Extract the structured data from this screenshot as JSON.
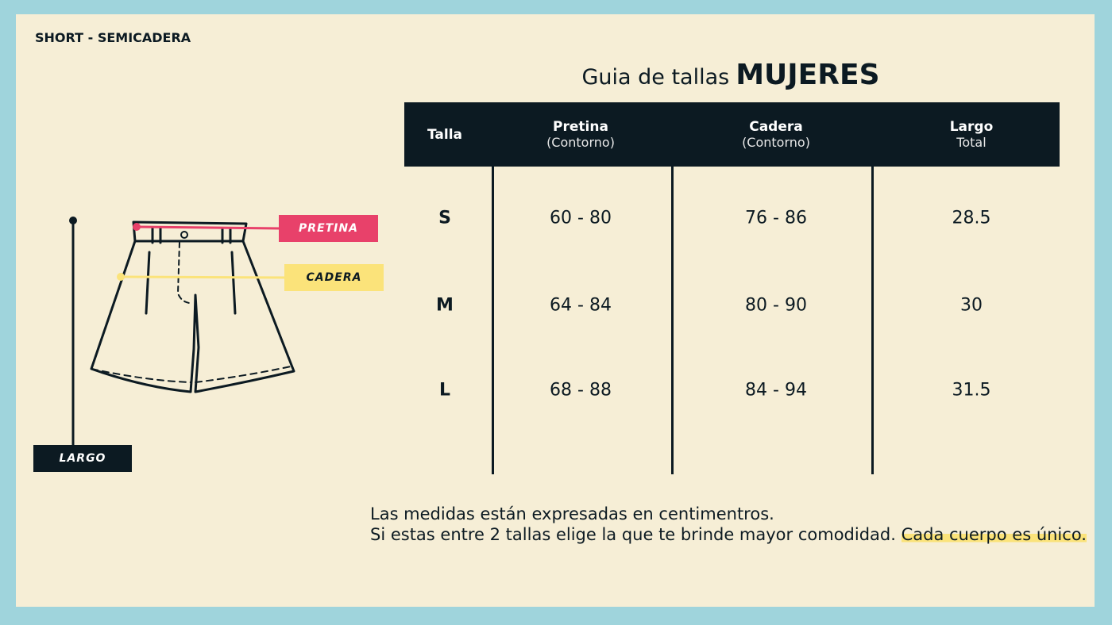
{
  "header": {
    "label": "SHORT - SEMICADERA"
  },
  "title": {
    "prefix": "Guia de tallas",
    "main": "MUJERES"
  },
  "table": {
    "headers": [
      {
        "title": "Talla"
      },
      {
        "title": "Pretina",
        "subtitle": "(Contorno)"
      },
      {
        "title": "Cadera",
        "subtitle": "(Contorno)"
      },
      {
        "title": "Largo",
        "subtitle": "Total"
      }
    ],
    "rows": [
      [
        "S",
        "60 - 80",
        "76 - 86",
        "28.5"
      ],
      [
        "M",
        "64 - 84",
        "80 - 90",
        "30"
      ],
      [
        "L",
        "68 - 88",
        "84 - 94",
        "31.5"
      ]
    ]
  },
  "diagram": {
    "labels": {
      "pretina": "PRETINA",
      "cadera": "CADERA",
      "largo": "LARGO"
    }
  },
  "notes": {
    "line1": "Las medidas están expresadas en centimentros.",
    "line2": "Si estas entre 2 tallas elige la que te brinde mayor comodidad.",
    "highlight": "Cada cuerpo es único."
  }
}
